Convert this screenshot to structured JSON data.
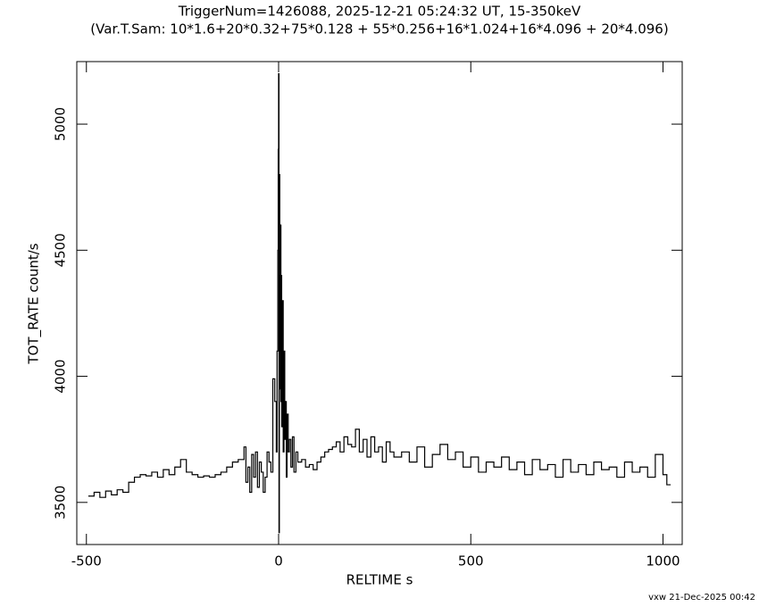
{
  "chart_data": {
    "type": "step",
    "title": "TriggerNum=1426088, 2025-12-21 05:24:32 UT, 15-350keV",
    "subtitle": "(Var.T.Sam: 10*1.6+20*0.32+75*0.128  +  55*0.256+16*1.024+16*4.096  +  20*4.096)",
    "x_label": "RELTIME  s",
    "y_label": "TOT_RATE  count/s",
    "footer": "vxw 21-Dec-2025 00:42",
    "color": "#000000",
    "xlim": [
      -525,
      1050
    ],
    "ylim": [
      3333,
      5248
    ],
    "xticks": [
      -500,
      0,
      500,
      1000
    ],
    "yticks": [
      3500,
      4000,
      4500,
      5000
    ],
    "x": [
      -495,
      -480,
      -465,
      -450,
      -435,
      -420,
      -405,
      -390,
      -375,
      -360,
      -345,
      -330,
      -315,
      -300,
      -285,
      -270,
      -255,
      -240,
      -225,
      -210,
      -195,
      -180,
      -165,
      -150,
      -135,
      -120,
      -105,
      -90,
      -85,
      -80,
      -75,
      -70,
      -65,
      -60,
      -55,
      -50,
      -45,
      -40,
      -35,
      -30,
      -25,
      -20,
      -15,
      -10,
      -6,
      -4,
      -2,
      -1,
      0,
      1,
      2,
      3,
      4,
      5,
      6,
      7,
      8,
      10,
      12,
      14,
      16,
      18,
      20,
      22,
      25,
      28,
      32,
      36,
      40,
      45,
      50,
      60,
      70,
      80,
      90,
      100,
      110,
      120,
      130,
      140,
      150,
      160,
      170,
      180,
      190,
      200,
      210,
      220,
      230,
      240,
      250,
      260,
      270,
      280,
      290,
      300,
      320,
      340,
      360,
      380,
      400,
      420,
      440,
      460,
      480,
      500,
      520,
      540,
      560,
      580,
      600,
      620,
      640,
      660,
      680,
      700,
      720,
      740,
      760,
      780,
      800,
      820,
      840,
      860,
      880,
      900,
      920,
      940,
      960,
      980,
      1000,
      1010
    ],
    "values": [
      3525,
      3540,
      3520,
      3545,
      3530,
      3550,
      3540,
      3580,
      3600,
      3610,
      3605,
      3620,
      3600,
      3630,
      3610,
      3640,
      3670,
      3620,
      3610,
      3600,
      3605,
      3600,
      3610,
      3620,
      3640,
      3660,
      3670,
      3720,
      3580,
      3640,
      3540,
      3690,
      3600,
      3700,
      3560,
      3660,
      3620,
      3540,
      3600,
      3700,
      3660,
      3620,
      3990,
      3900,
      3700,
      4100,
      4500,
      4900,
      5200,
      3380,
      4800,
      4200,
      3950,
      4600,
      3900,
      4400,
      3800,
      4300,
      3700,
      4100,
      3750,
      3900,
      3600,
      3850,
      3700,
      3750,
      3640,
      3760,
      3620,
      3700,
      3660,
      3670,
      3640,
      3650,
      3630,
      3660,
      3680,
      3700,
      3710,
      3720,
      3740,
      3700,
      3760,
      3730,
      3720,
      3790,
      3700,
      3750,
      3680,
      3760,
      3700,
      3720,
      3660,
      3740,
      3700,
      3680,
      3700,
      3660,
      3720,
      3640,
      3690,
      3730,
      3670,
      3700,
      3640,
      3680,
      3620,
      3660,
      3640,
      3680,
      3630,
      3660,
      3610,
      3670,
      3630,
      3650,
      3600,
      3670,
      3620,
      3650,
      3610,
      3660,
      3630,
      3640,
      3600,
      3660,
      3620,
      3640,
      3600,
      3690,
      3610,
      3570
    ]
  }
}
